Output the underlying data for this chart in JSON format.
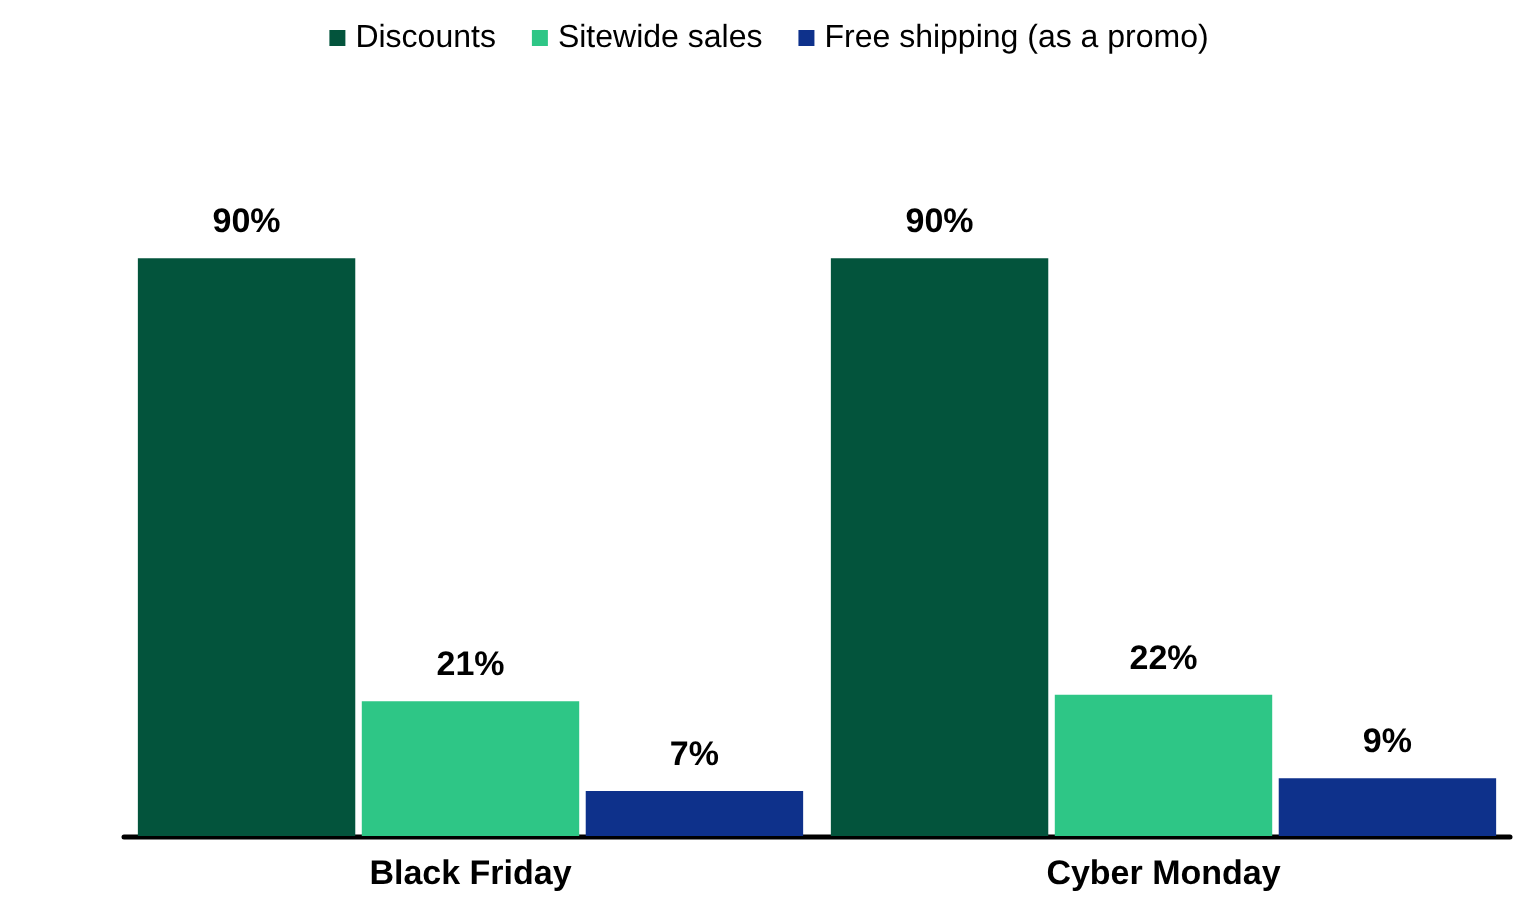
{
  "chart_data": {
    "type": "bar",
    "categories": [
      "Black Friday",
      "Cyber Monday"
    ],
    "series": [
      {
        "name": "Discounts",
        "color": "#03543c",
        "values": [
          90,
          90
        ],
        "value_labels": [
          "90%",
          "90%"
        ]
      },
      {
        "name": "Sitewide sales",
        "color": "#2ec686",
        "values": [
          21,
          22
        ],
        "value_labels": [
          "21%",
          "22%"
        ]
      },
      {
        "name": "Free shipping (as a promo)",
        "color": "#0e318b",
        "values": [
          7,
          9
        ],
        "value_labels": [
          "7%",
          "9%"
        ]
      }
    ],
    "legend": "top",
    "grid": false,
    "tick_labels": "x"
  }
}
